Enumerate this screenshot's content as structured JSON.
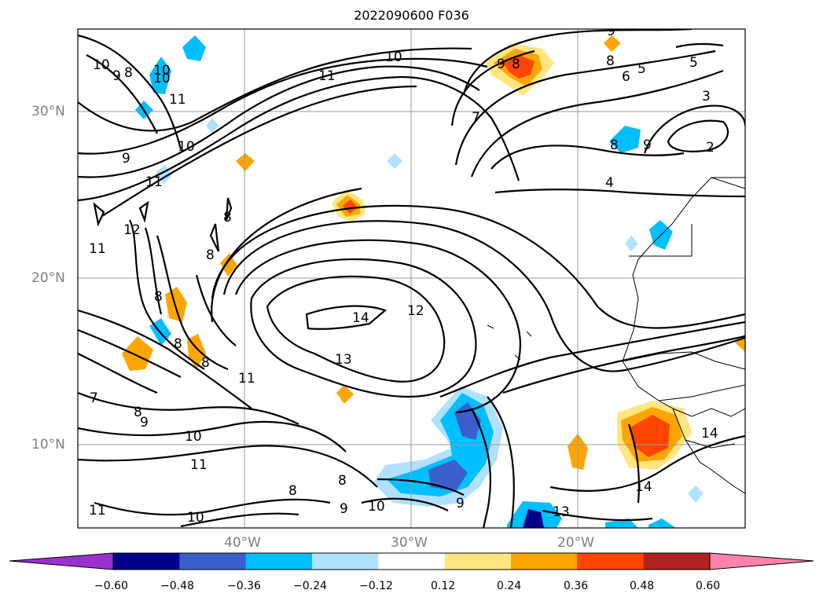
{
  "title": "2022090600 F036",
  "lat_labels": [
    "30°N",
    "20°N",
    "10°N"
  ],
  "lon_labels": [
    "40°W",
    "30°W",
    "20°W"
  ],
  "contour_labels": [
    "10",
    "9",
    "8",
    "10",
    "11",
    "10",
    "11",
    "9",
    "10",
    "11",
    "12",
    "11",
    "8",
    "8",
    "8",
    "8",
    "8",
    "7",
    "8",
    "9",
    "10",
    "11",
    "11",
    "10",
    "14",
    "13",
    "12",
    "11",
    "10",
    "9",
    "8",
    "7",
    "9",
    "8",
    "8",
    "6",
    "5",
    "3",
    "2",
    "4",
    "9",
    "5",
    "9",
    "10",
    "13",
    "14",
    "14",
    "8",
    "9",
    "8"
  ],
  "colorbar": {
    "ticks": [
      "−0.60",
      "−0.48",
      "−0.36",
      "−0.24",
      "−0.12",
      "0.12",
      "0.24",
      "0.36",
      "0.48",
      "0.60"
    ],
    "colors": [
      "#9932cc",
      "#00008b",
      "#3a5fcd",
      "#00bfff",
      "#b0e2ff",
      "#ffffff",
      "#ffe680",
      "#ffa500",
      "#ff4500",
      "#b22222",
      "#ff82ab"
    ]
  }
}
